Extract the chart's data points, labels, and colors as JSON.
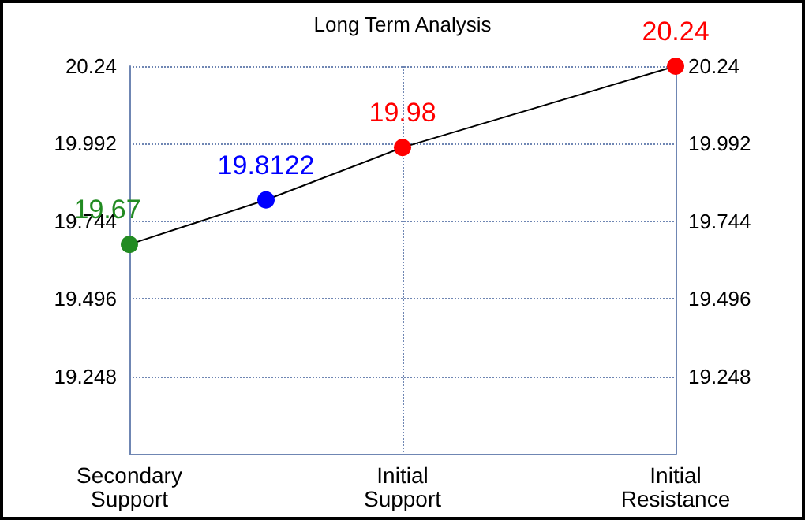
{
  "chart_data": {
    "type": "line",
    "title": "Long Term Analysis",
    "categories": [
      "Secondary\nSupport",
      null,
      "Initial\nSupport",
      null,
      "Initial\nResistance"
    ],
    "ylim": [
      19,
      20.24
    ],
    "yticks": [
      19.248,
      19.496,
      19.744,
      19.992,
      20.24
    ],
    "y2lim": [
      19,
      20.24
    ],
    "y2ticks": [
      19.248,
      19.496,
      19.744,
      19.992,
      20.24
    ],
    "grid": true,
    "data_labels": true,
    "marker": "circle",
    "series": [
      {
        "color": "#000000",
        "values": [
          19.67,
          19.8122,
          19.98,
          null,
          20.24
        ],
        "colors": [
          "#228b22",
          "#0000ff",
          "#ff0000",
          null,
          "#ff0000"
        ]
      }
    ]
  }
}
